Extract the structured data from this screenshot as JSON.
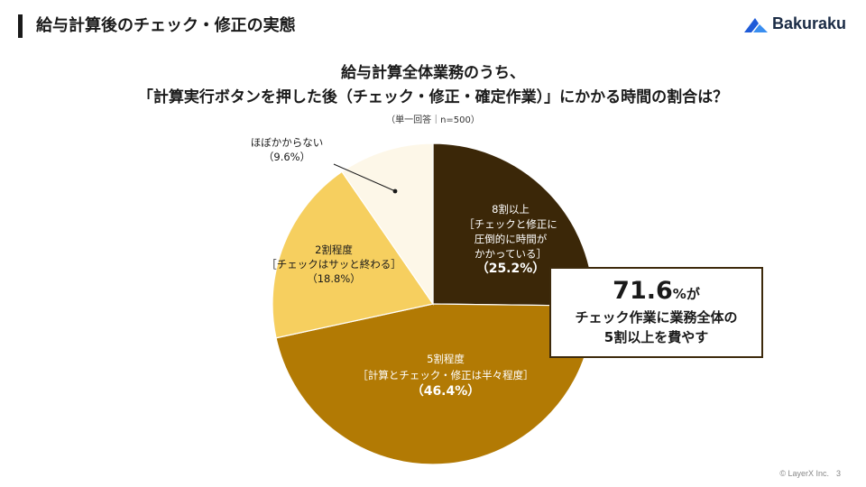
{
  "header": {
    "title": "給与計算後のチェック・修正の実態"
  },
  "logo": {
    "text": "Bakuraku"
  },
  "question": {
    "line1": "給与計算全体業務のうち、",
    "line2": "「計算実行ボタンを押した後（チェック・修正・確定作業）」にかかる時間の割合は？"
  },
  "sample_note": "（単一回答｜n=500）",
  "colors": {
    "slice_dark": "#3b2708",
    "slice_brown": "#b27a04",
    "slice_yellow": "#f6cf5f",
    "slice_cream": "#fdf7e8",
    "border": "#3d2a0c"
  },
  "chart_data": {
    "type": "pie",
    "title": "「計算実行ボタンを押した後（チェック・修正・確定作業）」にかかる時間の割合",
    "start": "12 o'clock, clockwise",
    "slices": [
      {
        "name": "8割以上",
        "detail": "［チェックと修正に圧倒的に時間がかかっている］",
        "value": 25.2,
        "value_label": "（25.2%）",
        "color": "#3b2708"
      },
      {
        "name": "5割程度",
        "detail": "［計算とチェック・修正は半々程度］",
        "value": 46.4,
        "value_label": "（46.4%）",
        "color": "#b27a04"
      },
      {
        "name": "2割程度",
        "detail": "［チェックはサッと終わる］",
        "value": 18.8,
        "value_label": "（18.8%）",
        "color": "#f6cf5f"
      },
      {
        "name": "ほぼかからない",
        "detail": "",
        "value": 9.6,
        "value_label": "（9.6%）",
        "color": "#fdf7e8"
      }
    ],
    "label_lines": {
      "s0": [
        "8割以上",
        "［チェックと修正に",
        "圧倒的に時間が",
        "かかっている］",
        "（25.2%）"
      ],
      "s1": [
        "5割程度",
        "［計算とチェック・修正は半々程度］",
        "（46.4%）"
      ],
      "s2": [
        "2割程度",
        "［チェックはサッと終わる］",
        "（18.8%）"
      ],
      "s3": [
        "ほぼかからない",
        "（9.6%）"
      ]
    }
  },
  "callout": {
    "big": "71.6",
    "small": "%が",
    "line2": "チェック作業に業務全体の",
    "line3": "5割以上を費やす"
  },
  "footer": {
    "copyright": "© LayerX Inc.",
    "page": "3"
  }
}
